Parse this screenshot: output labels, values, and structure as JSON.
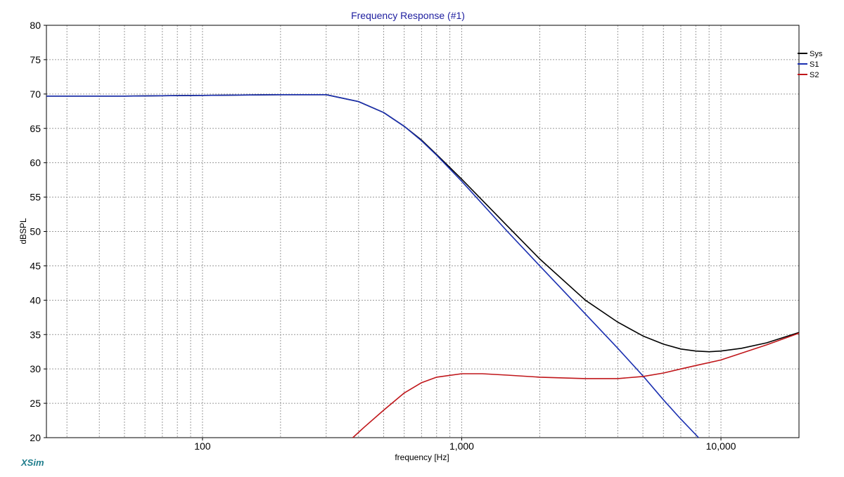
{
  "brand": "XSim",
  "colors": {
    "title": "#2020a0",
    "sys": "#000000",
    "s1": "#1a2fb0",
    "s2": "#c0161a",
    "brand": "#1f7d8c",
    "grid": "#9a9a9a"
  },
  "chart_data": {
    "type": "line",
    "title": "Frequency Response (#1)",
    "xlabel": "frequency [Hz]",
    "ylabel": "dBSPL",
    "xscale": "log",
    "xlim": [
      25,
      20000
    ],
    "ylim": [
      20,
      80
    ],
    "yticks": [
      20,
      25,
      30,
      35,
      40,
      45,
      50,
      55,
      60,
      65,
      70,
      75,
      80
    ],
    "xtick_labels": [
      {
        "value": 100,
        "label": "100"
      },
      {
        "value": 1000,
        "label": "1,000"
      },
      {
        "value": 10000,
        "label": "10,000"
      }
    ],
    "grid": true,
    "legend": {
      "position": "top-right",
      "entries": [
        "Sys",
        "S1",
        "S2"
      ]
    },
    "series": [
      {
        "name": "Sys",
        "color": "#000000",
        "x": [
          25,
          50,
          100,
          200,
          300,
          400,
          500,
          600,
          700,
          800,
          1000,
          1500,
          2000,
          3000,
          4000,
          5000,
          6000,
          7000,
          8000,
          9000,
          10000,
          12000,
          15000,
          20000
        ],
        "y": [
          69.7,
          69.7,
          69.8,
          69.9,
          69.9,
          68.9,
          67.3,
          65.3,
          63.3,
          61.2,
          57.6,
          50.8,
          46.0,
          40.0,
          36.8,
          34.8,
          33.6,
          32.9,
          32.6,
          32.5,
          32.6,
          33.0,
          33.8,
          35.3
        ]
      },
      {
        "name": "S1",
        "color": "#1a2fb0",
        "x": [
          25,
          50,
          100,
          200,
          300,
          400,
          500,
          600,
          700,
          800,
          1000,
          1500,
          2000,
          3000,
          4000,
          5000,
          6000,
          7000,
          8200
        ],
        "y": [
          69.7,
          69.7,
          69.8,
          69.9,
          69.9,
          68.9,
          67.3,
          65.3,
          63.2,
          61.1,
          57.3,
          50.0,
          45.0,
          38.0,
          33.0,
          29.0,
          25.5,
          22.7,
          20.0
        ]
      },
      {
        "name": "S2",
        "color": "#c0161a",
        "x": [
          380,
          420,
          500,
          600,
          700,
          800,
          1000,
          1200,
          1500,
          2000,
          3000,
          4000,
          5000,
          6000,
          7000,
          8000,
          10000,
          12000,
          15000,
          20000
        ],
        "y": [
          20.0,
          21.5,
          24.0,
          26.5,
          28.0,
          28.8,
          29.3,
          29.3,
          29.1,
          28.8,
          28.6,
          28.6,
          28.9,
          29.4,
          30.0,
          30.5,
          31.3,
          32.3,
          33.5,
          35.2
        ]
      }
    ]
  }
}
